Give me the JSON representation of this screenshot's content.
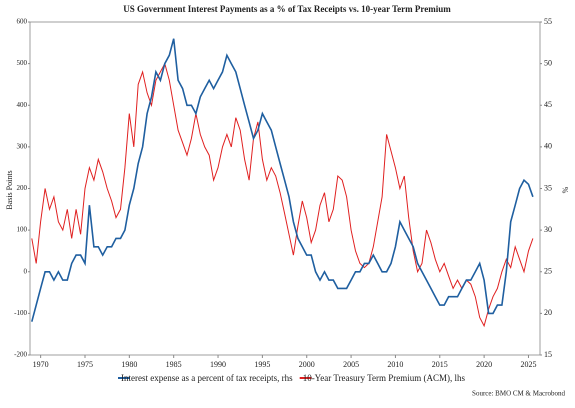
{
  "chart_data": {
    "type": "line",
    "title": "US Government Interest Payments as a % of Tax Receipts vs. 10-year Term Premium",
    "y_label": "Basis Points",
    "y2_label": "%",
    "source": "Source: BMO CM & Macrobond",
    "x": [
      1969,
      1969.5,
      1970,
      1970.5,
      1971,
      1971.5,
      1972,
      1972.5,
      1973,
      1973.5,
      1974,
      1974.5,
      1975,
      1975.5,
      1976,
      1976.5,
      1977,
      1977.5,
      1978,
      1978.5,
      1979,
      1979.5,
      1980,
      1980.5,
      1981,
      1981.5,
      1982,
      1982.5,
      1983,
      1983.5,
      1984,
      1984.5,
      1985,
      1985.5,
      1986,
      1986.5,
      1987,
      1987.5,
      1988,
      1988.5,
      1989,
      1989.5,
      1990,
      1990.5,
      1991,
      1991.5,
      1992,
      1992.5,
      1993,
      1993.5,
      1994,
      1994.5,
      1995,
      1995.5,
      1996,
      1996.5,
      1997,
      1997.5,
      1998,
      1998.5,
      1999,
      1999.5,
      2000,
      2000.5,
      2001,
      2001.5,
      2002,
      2002.5,
      2003,
      2003.5,
      2004,
      2004.5,
      2005,
      2005.5,
      2006,
      2006.5,
      2007,
      2007.5,
      2008,
      2008.5,
      2009,
      2009.5,
      2010,
      2010.5,
      2011,
      2011.5,
      2012,
      2012.5,
      2013,
      2013.5,
      2014,
      2014.5,
      2015,
      2015.5,
      2016,
      2016.5,
      2017,
      2017.5,
      2018,
      2018.5,
      2019,
      2019.5,
      2020,
      2020.5,
      2021,
      2021.5,
      2022,
      2022.5,
      2023,
      2023.5,
      2024,
      2024.5,
      2025,
      2025.5
    ],
    "series": [
      {
        "name": "Interest expense as a percent of tax receipts, rhs",
        "color": "#1f5fa0",
        "axis": "y2",
        "values": [
          19,
          21,
          23,
          25,
          25,
          24,
          25,
          24,
          24,
          26,
          27,
          27,
          26,
          33,
          28,
          28,
          27,
          28,
          28,
          29,
          29,
          30,
          33,
          35,
          38,
          40,
          44,
          46,
          49,
          48,
          50,
          51,
          53,
          48,
          47,
          45,
          45,
          44,
          46,
          47,
          48,
          47,
          48,
          49,
          51,
          50,
          49,
          47,
          45,
          43,
          41,
          42,
          44,
          43,
          42,
          40,
          38,
          36,
          34,
          31,
          29,
          28,
          27,
          27,
          25,
          24,
          25,
          24,
          24,
          23,
          23,
          23,
          24,
          25,
          25,
          26,
          26,
          27,
          26,
          25,
          25,
          26,
          28,
          31,
          30,
          29,
          28,
          26,
          25,
          24,
          23,
          22,
          21,
          21,
          22,
          22,
          22,
          23,
          24,
          24,
          25,
          26,
          24,
          20,
          20,
          21,
          21,
          25,
          31,
          33,
          35,
          36,
          35.5,
          34
        ]
      },
      {
        "name": "10-Year Treasury Term Premium (ACM), lhs",
        "color": "#e02020",
        "values": [
          80,
          20,
          120,
          200,
          150,
          180,
          120,
          100,
          150,
          80,
          150,
          90,
          200,
          250,
          220,
          270,
          240,
          200,
          170,
          130,
          150,
          250,
          380,
          300,
          450,
          480,
          430,
          400,
          460,
          480,
          500,
          460,
          400,
          340,
          310,
          280,
          320,
          380,
          330,
          300,
          280,
          220,
          250,
          300,
          330,
          300,
          370,
          340,
          270,
          220,
          320,
          360,
          270,
          220,
          250,
          230,
          190,
          140,
          90,
          40,
          110,
          170,
          130,
          70,
          100,
          160,
          190,
          120,
          150,
          230,
          220,
          180,
          100,
          50,
          20,
          10,
          20,
          60,
          120,
          180,
          330,
          290,
          250,
          200,
          230,
          130,
          50,
          0,
          20,
          100,
          70,
          30,
          0,
          20,
          -10,
          -40,
          -20,
          -40,
          -20,
          -30,
          -60,
          -110,
          -130,
          -90,
          -60,
          -40,
          0,
          30,
          10,
          60,
          30,
          0,
          50,
          80
        ]
      }
    ],
    "xlim": [
      1968.8,
      2026.3
    ],
    "xticks": [
      1970,
      1975,
      1980,
      1985,
      1990,
      1995,
      2000,
      2005,
      2010,
      2015,
      2020,
      2025
    ],
    "ylim": [
      -200,
      600
    ],
    "yticks": [
      -200,
      -100,
      0,
      100,
      200,
      300,
      400,
      500,
      600
    ],
    "y2lim": [
      15,
      55
    ],
    "y2ticks": [
      15,
      20,
      25,
      30,
      35,
      40,
      45,
      50,
      55
    ],
    "grid": false
  }
}
